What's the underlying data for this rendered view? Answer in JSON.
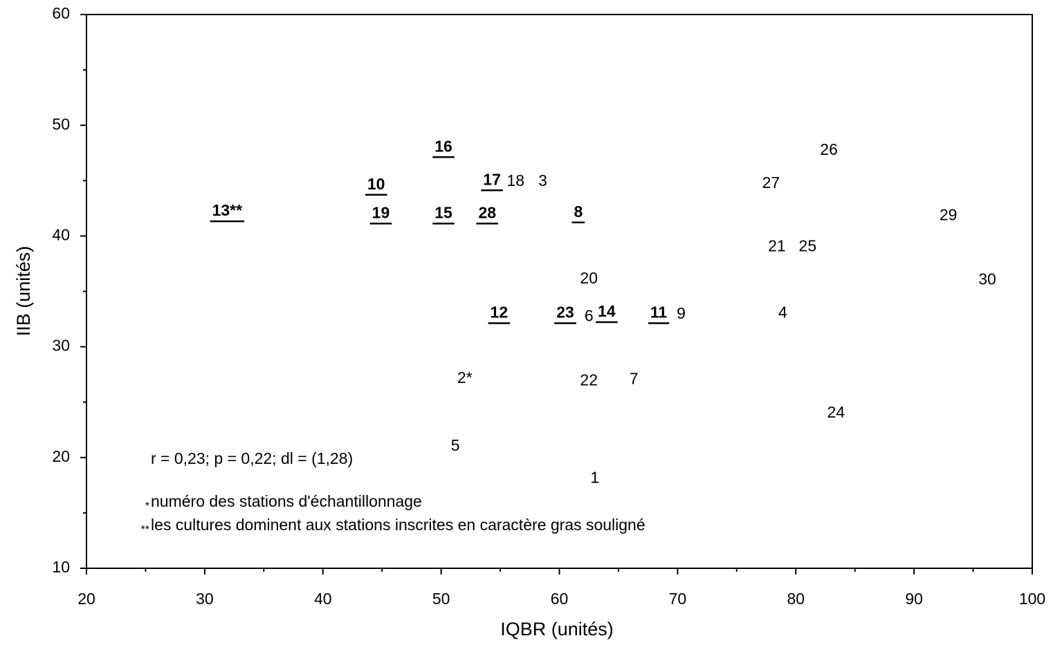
{
  "chart_data": {
    "type": "scatter",
    "x_label": "IQBR (unités)",
    "y_label": "IIB (unités)",
    "xlim": [
      20,
      100
    ],
    "xticks": [
      20,
      30,
      40,
      50,
      60,
      70,
      80,
      90,
      100
    ],
    "ylim": [
      10,
      60
    ],
    "yticks": [
      10,
      20,
      30,
      40,
      50,
      60
    ],
    "minor_ticks": true,
    "color": "#000000",
    "labels": [
      "16",
      "10",
      "13**",
      "19",
      "15",
      "28",
      "17",
      "18",
      "3",
      "8",
      "26",
      "27",
      "29",
      "21",
      "25",
      "30",
      "20",
      "12",
      "23",
      "6",
      "14",
      "11",
      "9",
      "4",
      "2*",
      "22",
      "7",
      "24",
      "5",
      "1"
    ],
    "x": [
      50.2,
      44.5,
      31.9,
      44.9,
      50.2,
      53.9,
      54.3,
      56.3,
      58.6,
      61.6,
      82.8,
      77.9,
      92.9,
      78.4,
      81.0,
      96.2,
      62.5,
      54.9,
      60.5,
      62.5,
      64.0,
      68.4,
      70.3,
      78.9,
      52.0,
      62.5,
      66.3,
      83.4,
      51.2,
      63.0
    ],
    "values": [
      48.0,
      44.6,
      42.2,
      42.0,
      42.0,
      42.0,
      45.0,
      44.9,
      44.9,
      42.1,
      47.7,
      44.7,
      41.8,
      39.0,
      39.0,
      36.0,
      36.1,
      33.0,
      33.0,
      32.7,
      33.1,
      33.0,
      32.9,
      33.0,
      27.1,
      26.9,
      27.0,
      24.0,
      21.0,
      18.1
    ],
    "bold_underlined": [
      true,
      true,
      true,
      true,
      true,
      true,
      true,
      false,
      false,
      true,
      false,
      false,
      false,
      false,
      false,
      false,
      false,
      true,
      true,
      false,
      true,
      true,
      false,
      false,
      false,
      false,
      false,
      false,
      false,
      false
    ],
    "annotations": [
      {
        "text": "r = 0,23;  p = 0,22;  dl = (1,28)"
      },
      {
        "marker": "*",
        "text": "numéro des stations d'échantillonnage"
      },
      {
        "marker": "**",
        "text": "les cultures dominent aux stations inscrites en caractère gras souligné"
      }
    ]
  }
}
